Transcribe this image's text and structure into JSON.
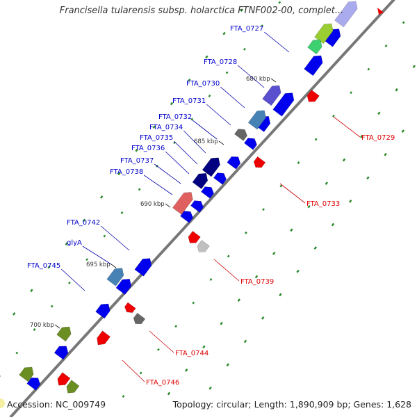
{
  "title": "Francisella tularensis subsp. holarctica FTNF002-00, complet...",
  "footer": {
    "accession": "Accession: NC_009749",
    "summary": "Topology: circular; Length: 1,890,909 bp; Genes: 1,628"
  },
  "ticks": [
    "680 kbp",
    "685 kbp",
    "690 kbp",
    "695 kbp",
    "700 kbp"
  ],
  "colors": {
    "backbone": "#777777",
    "forward_gene": "#0000ee",
    "reverse_gene": "#ee0000",
    "label_forward": "#0000cc",
    "label_reverse": "#dd0000",
    "tick": "#2a8a2a",
    "navy": "#000080",
    "olive": "#6b8e23",
    "steelblue": "#4682b4",
    "slateblue": "#5a4fcf",
    "gray": "#666666",
    "silver": "#c0c0c0"
  },
  "forward_labels": [
    "FTA_0727",
    "FTA_0728",
    "FTA_0730",
    "FTA_0731",
    "FTA_0732",
    "FTA_0734",
    "FTA_0735",
    "FTA_0736",
    "FTA_0737",
    "FTA_0738",
    "FTA_0742",
    "glyA",
    "FTA_0745"
  ],
  "reverse_labels": [
    "FTA_0729",
    "FTA_0733",
    "FTA_0739",
    "FTA_0744",
    "FTA_0746"
  ]
}
